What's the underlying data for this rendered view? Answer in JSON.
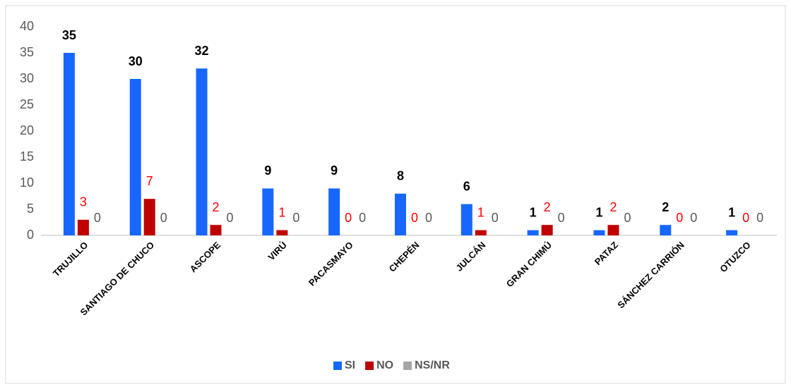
{
  "chart_data": {
    "type": "bar",
    "categories": [
      "TRUJILLO",
      "SANTIAGO DE CHUCO",
      "ASCOPE",
      "VIRÚ",
      "PACASMAYO",
      "CHEPÉN",
      "JULCÁN",
      "GRAN CHIMÚ",
      "PATAZ",
      "SÁNCHEZ CARRIÓN",
      "OTUZCO"
    ],
    "series": [
      {
        "name": "SI",
        "color": "#1767ff",
        "label_color": "#000000",
        "values": [
          35,
          30,
          32,
          9,
          9,
          8,
          6,
          1,
          1,
          2,
          1
        ]
      },
      {
        "name": "NO",
        "color": "#c00000",
        "label_color": "#ff0000",
        "values": [
          3,
          7,
          2,
          1,
          0,
          0,
          1,
          2,
          2,
          0,
          0
        ]
      },
      {
        "name": "NS/NR",
        "color": "#a6a6a6",
        "label_color": "#595959",
        "values": [
          0,
          0,
          0,
          0,
          0,
          0,
          0,
          0,
          0,
          0,
          0
        ]
      }
    ],
    "ylim": [
      0,
      40
    ],
    "yticks": [
      0,
      5,
      10,
      15,
      20,
      25,
      30,
      35,
      40
    ],
    "grid": false,
    "legend": "bottom"
  }
}
